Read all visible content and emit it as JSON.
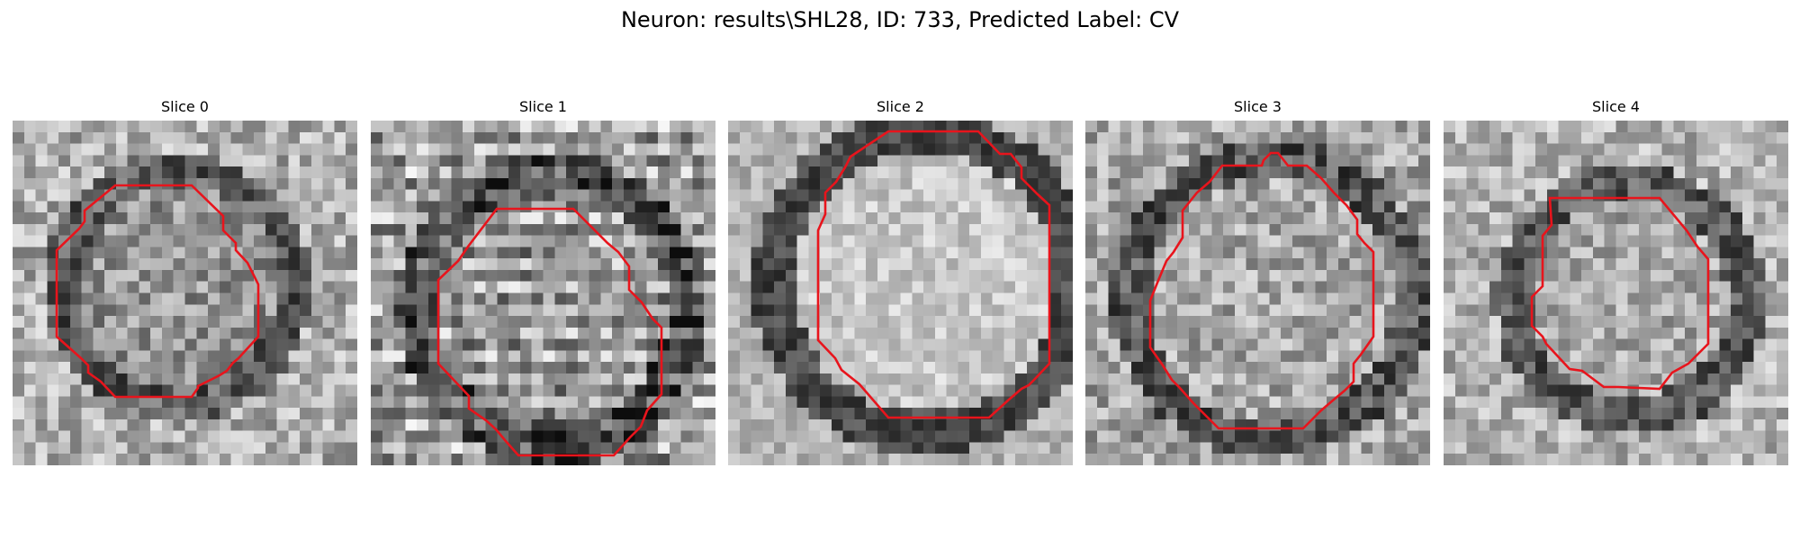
{
  "figure": {
    "title": "Neuron: results\\SHL28, ID: 733, Predicted Label: CV",
    "contour_color": "#e8141c",
    "colormap": "gray",
    "panels": [
      {
        "title": "Slice 0"
      },
      {
        "title": "Slice 1"
      },
      {
        "title": "Slice 2"
      },
      {
        "title": "Slice 3"
      },
      {
        "title": "Slice 4"
      }
    ]
  }
}
